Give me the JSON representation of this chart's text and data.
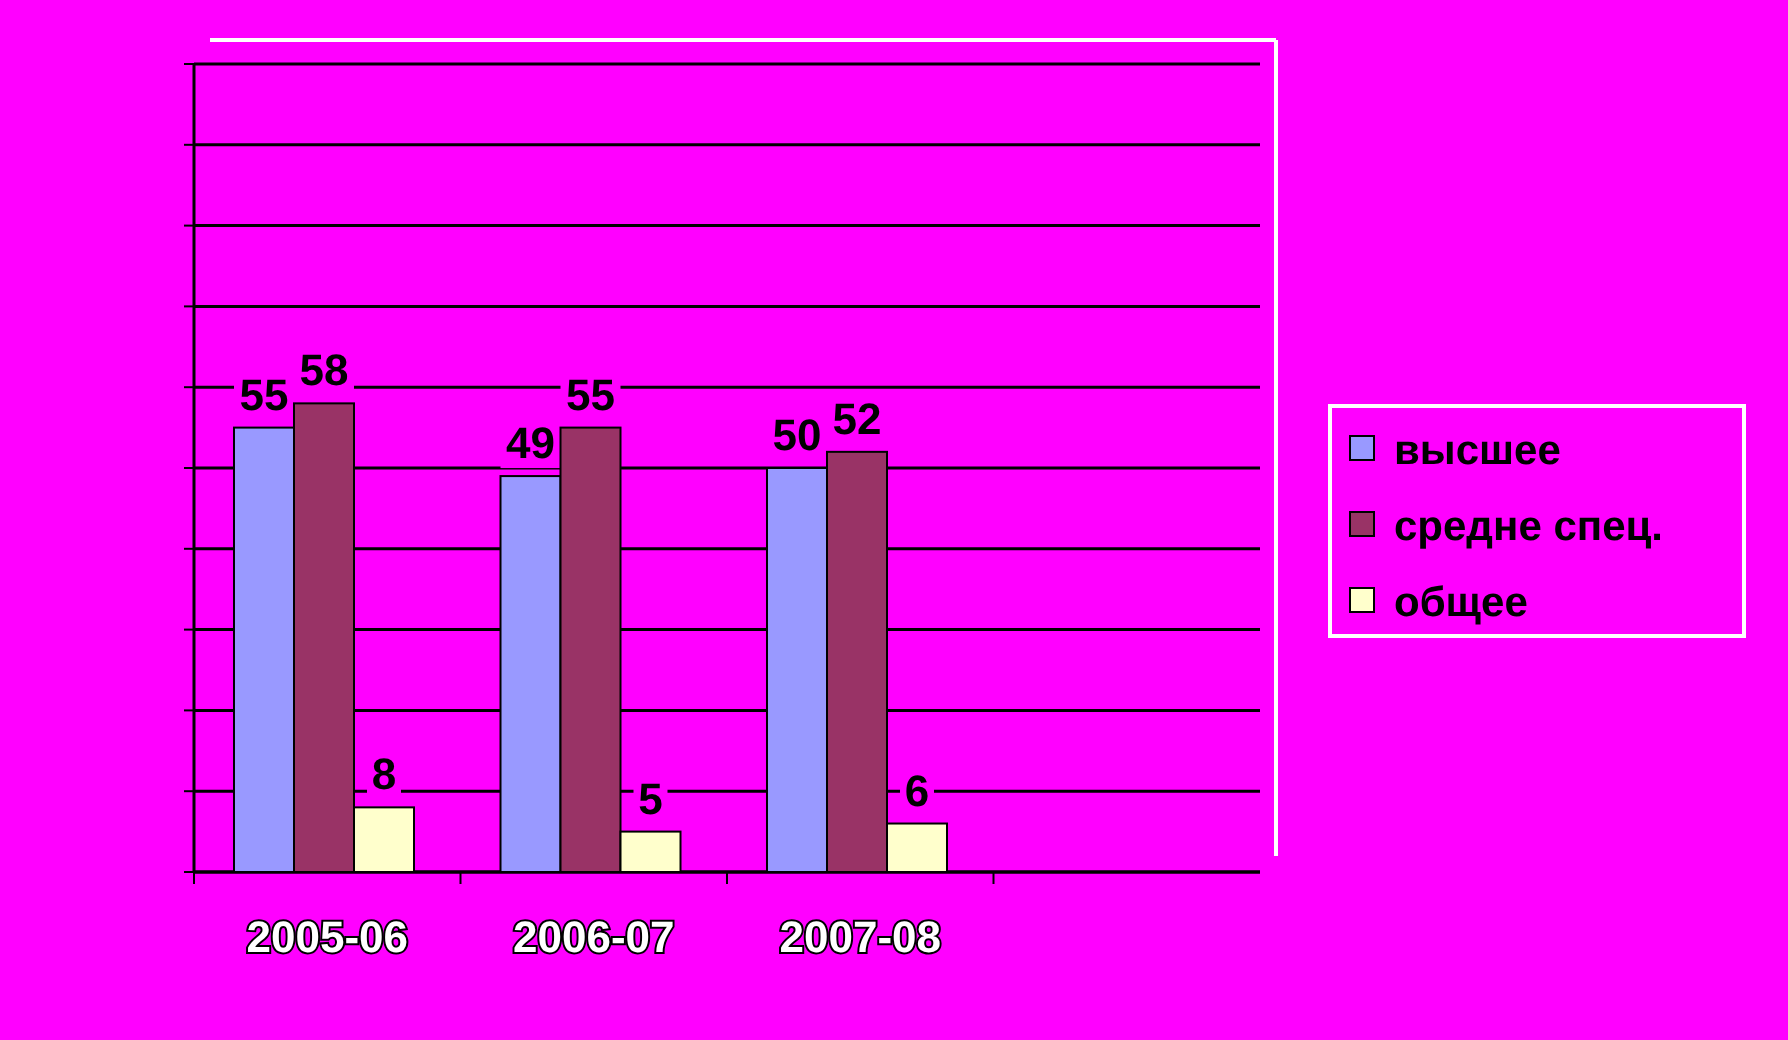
{
  "chart_data": {
    "type": "bar",
    "categories": [
      "2005-06",
      "2006-07",
      "2007-08",
      null
    ],
    "series": [
      {
        "name": "высшее",
        "color": "#9999ff",
        "values": [
          55,
          49,
          50,
          null
        ]
      },
      {
        "name": "средне спец.",
        "color": "#993366",
        "values": [
          58,
          55,
          52,
          null
        ]
      },
      {
        "name": "общее",
        "color": "#ffffcc",
        "values": [
          8,
          5,
          6,
          null
        ]
      }
    ],
    "ylim": [
      0,
      100
    ],
    "yticks": [
      {
        "value": 0,
        "label": null
      },
      {
        "value": 10,
        "label": null
      },
      {
        "value": 20,
        "label": null
      },
      {
        "value": 30,
        "label": null
      },
      {
        "value": 40,
        "label": null
      },
      {
        "value": 50,
        "label": null
      },
      {
        "value": 60,
        "label": null
      },
      {
        "value": 70,
        "label": null
      },
      {
        "value": 80,
        "label": null
      },
      {
        "value": 90,
        "label": null
      },
      {
        "value": 100,
        "label": null
      }
    ],
    "grid": "y",
    "legend": "right",
    "data_labels": true
  }
}
